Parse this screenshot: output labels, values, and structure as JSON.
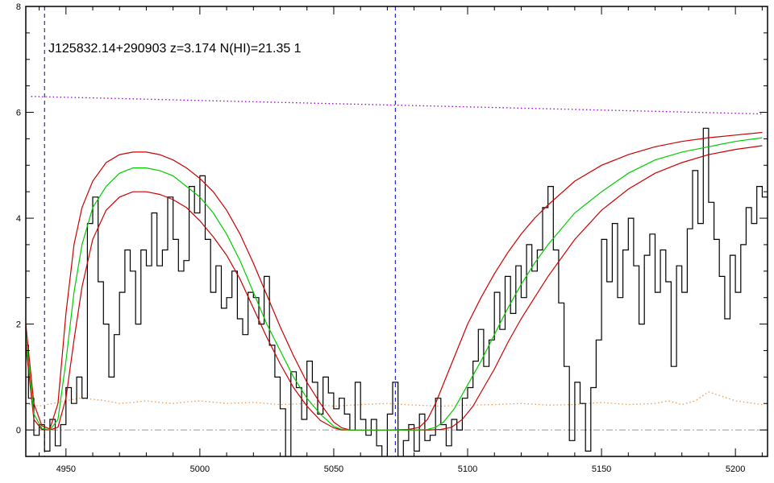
{
  "chart_data": {
    "type": "line",
    "title": "J125832.14+290903 z=3.174 N(HI)=21.35 1",
    "xlabel": "",
    "ylabel": "",
    "xlim": [
      4935,
      5212
    ],
    "ylim": [
      -0.5,
      8
    ],
    "x_ticks": [
      4950,
      5000,
      5050,
      5100,
      5150,
      5200
    ],
    "y_ticks": [
      0,
      2,
      4,
      6,
      8
    ],
    "grid": false,
    "colors": {
      "flux": "#000000",
      "model": "#00cc00",
      "model_bounds": "#cc0000",
      "continuum": "#9900cc",
      "error": "#e89a50",
      "zero_line": "#999999",
      "markers": "#0000cc"
    },
    "vertical_markers": [
      4942,
      5073
    ],
    "series": [
      {
        "key": "flux",
        "style": "step",
        "x": [
          4935,
          4937,
          4939,
          4941,
          4943,
          4945,
          4947,
          4949,
          4951,
          4953,
          4955,
          4957,
          4959,
          4961,
          4963,
          4965,
          4967,
          4969,
          4971,
          4973,
          4975,
          4977,
          4979,
          4981,
          4983,
          4985,
          4987,
          4989,
          4991,
          4993,
          4995,
          4997,
          4999,
          5001,
          5003,
          5005,
          5007,
          5009,
          5011,
          5013,
          5015,
          5017,
          5019,
          5021,
          5023,
          5025,
          5027,
          5029,
          5031,
          5033,
          5035,
          5037,
          5039,
          5041,
          5043,
          5045,
          5047,
          5049,
          5051,
          5053,
          5055,
          5057,
          5059,
          5061,
          5063,
          5065,
          5067,
          5069,
          5071,
          5073,
          5075,
          5077,
          5079,
          5081,
          5083,
          5085,
          5087,
          5089,
          5091,
          5093,
          5095,
          5097,
          5099,
          5101,
          5103,
          5105,
          5107,
          5109,
          5111,
          5113,
          5115,
          5117,
          5119,
          5121,
          5123,
          5125,
          5127,
          5129,
          5131,
          5133,
          5135,
          5137,
          5139,
          5141,
          5143,
          5145,
          5147,
          5149,
          5151,
          5153,
          5155,
          5157,
          5159,
          5161,
          5163,
          5165,
          5167,
          5169,
          5171,
          5173,
          5175,
          5177,
          5179,
          5181,
          5183,
          5185,
          5187,
          5189,
          5191,
          5193,
          5195,
          5197,
          5199,
          5201,
          5203,
          5205,
          5207,
          5209,
          5211
        ],
        "y": [
          1.6,
          0.6,
          -0.1,
          0.1,
          -0.4,
          0.2,
          -0.3,
          0.1,
          0.8,
          0.5,
          1.0,
          0.6,
          3.9,
          4.4,
          2.8,
          2.0,
          1.0,
          1.8,
          2.6,
          3.4,
          3.0,
          2.0,
          3.4,
          3.1,
          4.1,
          3.1,
          3.4,
          4.4,
          3.6,
          3.0,
          3.2,
          4.6,
          4.1,
          4.8,
          3.6,
          2.6,
          3.1,
          2.3,
          2.5,
          3.0,
          2.1,
          1.8,
          2.6,
          2.5,
          2.0,
          2.9,
          1.6,
          1.0,
          0.4,
          -0.7,
          1.1,
          0.8,
          0.2,
          1.3,
          0.9,
          0.3,
          1.0,
          0.7,
          0.4,
          0.6,
          0.3,
          0.0,
          0.9,
          0.2,
          -0.1,
          0.2,
          -0.3,
          -0.6,
          0.3,
          0.9,
          -0.7,
          -0.2,
          0.1,
          -0.4,
          0.3,
          -0.2,
          -0.1,
          0.6,
          0.1,
          -0.3,
          0.2,
          0.0,
          0.6,
          0.8,
          1.3,
          1.9,
          1.2,
          1.7,
          2.6,
          1.9,
          2.9,
          2.2,
          3.1,
          2.5,
          3.5,
          3.0,
          3.4,
          4.2,
          4.6,
          3.4,
          2.4,
          1.2,
          -0.2,
          0.9,
          0.5,
          -0.4,
          0.8,
          1.7,
          3.6,
          2.8,
          3.9,
          2.5,
          3.4,
          4.0,
          3.1,
          2.0,
          3.3,
          3.7,
          2.6,
          3.4,
          2.8,
          1.2,
          3.1,
          2.6,
          3.8,
          4.9,
          3.9,
          5.7,
          4.3,
          3.6,
          2.9,
          2.1,
          3.3,
          2.6,
          3.5,
          4.2,
          3.9,
          4.6,
          4.4
        ]
      },
      {
        "key": "continuum",
        "style": "dotted",
        "x": [
          4937,
          5210
        ],
        "y": [
          6.3,
          5.97
        ]
      },
      {
        "key": "model",
        "style": "solid",
        "x": [
          4935,
          4938,
          4941,
          4944,
          4947,
          4950,
          4953,
          4956,
          4960,
          4965,
          4970,
          4975,
          4980,
          4985,
          4990,
          4995,
          5000,
          5005,
          5010,
          5015,
          5020,
          5025,
          5030,
          5035,
          5040,
          5045,
          5050,
          5053,
          5056,
          5060,
          5070,
          5080,
          5085,
          5088,
          5091,
          5095,
          5100,
          5105,
          5110,
          5115,
          5120,
          5125,
          5130,
          5140,
          5150,
          5160,
          5170,
          5180,
          5190,
          5200,
          5210
        ],
        "y": [
          1.8,
          0.3,
          0.03,
          0.0,
          0.2,
          1.3,
          2.6,
          3.5,
          4.2,
          4.6,
          4.85,
          4.95,
          4.95,
          4.9,
          4.8,
          4.6,
          4.4,
          4.1,
          3.7,
          3.2,
          2.6,
          2.0,
          1.5,
          1.0,
          0.6,
          0.3,
          0.07,
          0.01,
          0.0,
          0.0,
          0.0,
          0.0,
          0.01,
          0.05,
          0.15,
          0.4,
          0.85,
          1.3,
          1.8,
          2.3,
          2.75,
          3.15,
          3.5,
          4.1,
          4.5,
          4.85,
          5.1,
          5.25,
          5.35,
          5.45,
          5.52
        ]
      },
      {
        "key": "model_upper",
        "style": "solid",
        "x": [
          4935,
          4938,
          4941,
          4944,
          4947,
          4950,
          4953,
          4956,
          4960,
          4965,
          4970,
          4975,
          4980,
          4985,
          4990,
          4995,
          5000,
          5005,
          5010,
          5015,
          5020,
          5025,
          5030,
          5035,
          5040,
          5045,
          5050,
          5053,
          5056,
          5060,
          5070,
          5078,
          5082,
          5085,
          5088,
          5092,
          5096,
          5100,
          5105,
          5110,
          5115,
          5120,
          5125,
          5130,
          5140,
          5150,
          5160,
          5170,
          5180,
          5190,
          5200,
          5210
        ],
        "y": [
          2.0,
          0.5,
          0.08,
          0.02,
          0.5,
          2.2,
          3.5,
          4.2,
          4.7,
          5.05,
          5.2,
          5.25,
          5.25,
          5.2,
          5.1,
          4.95,
          4.75,
          4.5,
          4.15,
          3.7,
          3.15,
          2.55,
          1.95,
          1.4,
          0.9,
          0.5,
          0.15,
          0.04,
          0.0,
          0.0,
          0.0,
          0.01,
          0.05,
          0.2,
          0.5,
          1.0,
          1.5,
          2.0,
          2.5,
          2.95,
          3.35,
          3.7,
          4.0,
          4.25,
          4.7,
          5.0,
          5.2,
          5.35,
          5.45,
          5.52,
          5.57,
          5.62
        ]
      },
      {
        "key": "model_lower",
        "style": "solid",
        "x": [
          4935,
          4938,
          4941,
          4944,
          4947,
          4950,
          4953,
          4956,
          4960,
          4965,
          4970,
          4975,
          4980,
          4985,
          4990,
          4995,
          5000,
          5005,
          5010,
          5015,
          5020,
          5025,
          5030,
          5035,
          5040,
          5045,
          5050,
          5053,
          5056,
          5060,
          5070,
          5080,
          5085,
          5090,
          5094,
          5098,
          5102,
          5106,
          5110,
          5115,
          5120,
          5125,
          5130,
          5140,
          5150,
          5160,
          5170,
          5180,
          5190,
          5200,
          5210
        ],
        "y": [
          1.6,
          0.2,
          0.01,
          0.0,
          0.05,
          0.6,
          1.7,
          2.7,
          3.6,
          4.15,
          4.4,
          4.5,
          4.5,
          4.45,
          4.35,
          4.2,
          3.95,
          3.65,
          3.3,
          2.85,
          2.3,
          1.75,
          1.25,
          0.8,
          0.45,
          0.18,
          0.04,
          0.0,
          0.0,
          0.0,
          0.0,
          0.0,
          0.0,
          0.01,
          0.05,
          0.2,
          0.45,
          0.8,
          1.15,
          1.65,
          2.1,
          2.5,
          2.9,
          3.6,
          4.15,
          4.55,
          4.85,
          5.05,
          5.2,
          5.3,
          5.37
        ]
      },
      {
        "key": "error",
        "style": "dotted",
        "x": [
          4935,
          4940,
          4945,
          4950,
          4955,
          4960,
          4965,
          4970,
          4975,
          4980,
          4985,
          4990,
          4995,
          5000,
          5010,
          5020,
          5030,
          5040,
          5050,
          5060,
          5070,
          5080,
          5090,
          5100,
          5110,
          5120,
          5130,
          5140,
          5150,
          5160,
          5170,
          5175,
          5180,
          5185,
          5190,
          5200,
          5210
        ],
        "y": [
          0.5,
          0.45,
          0.5,
          0.55,
          0.6,
          0.58,
          0.55,
          0.5,
          0.52,
          0.55,
          0.52,
          0.5,
          0.53,
          0.55,
          0.5,
          0.52,
          0.48,
          0.5,
          0.45,
          0.48,
          0.5,
          0.47,
          0.45,
          0.47,
          0.48,
          0.5,
          0.47,
          0.48,
          0.52,
          0.48,
          0.5,
          0.55,
          0.48,
          0.55,
          0.72,
          0.55,
          0.48
        ]
      }
    ]
  }
}
